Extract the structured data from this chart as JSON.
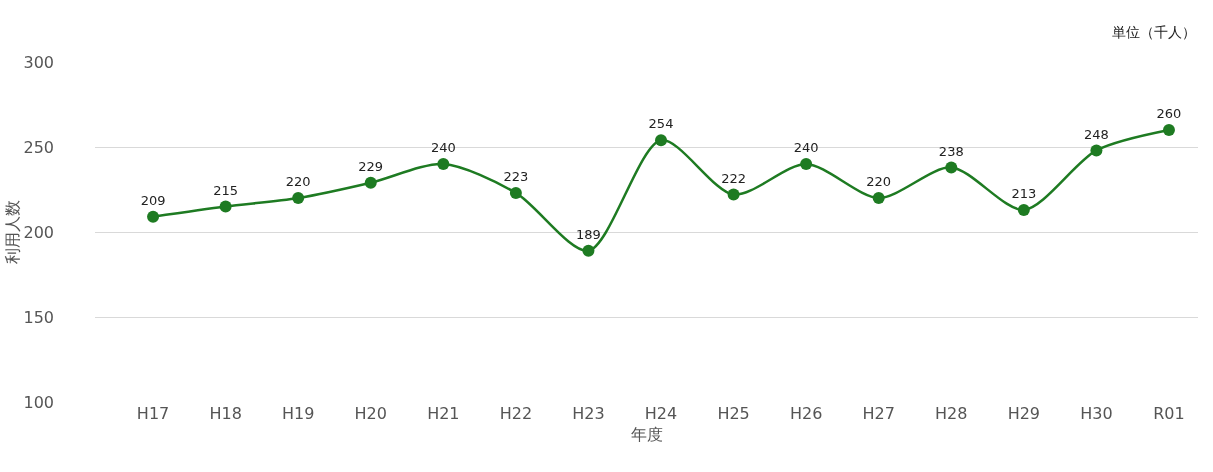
{
  "chart_data": {
    "type": "line",
    "xlabel": "年度",
    "ylabel": "利用人数",
    "annotations": [
      "単位（千人）"
    ],
    "categories": [
      "H17",
      "H18",
      "H19",
      "H20",
      "H21",
      "H22",
      "H23",
      "H24",
      "H25",
      "H26",
      "H27",
      "H28",
      "H29",
      "H30",
      "R01"
    ],
    "series": [
      {
        "color": "#1e7b22",
        "values": [
          209,
          215,
          220,
          229,
          240,
          223,
          189,
          254,
          222,
          240,
          220,
          238,
          213,
          248,
          260
        ]
      }
    ],
    "ylim": [
      100,
      300
    ],
    "yticks": [
      100,
      150,
      200,
      250,
      300
    ],
    "grid": "y",
    "data_labels": true,
    "marker": "circle",
    "line_style": "solid"
  }
}
